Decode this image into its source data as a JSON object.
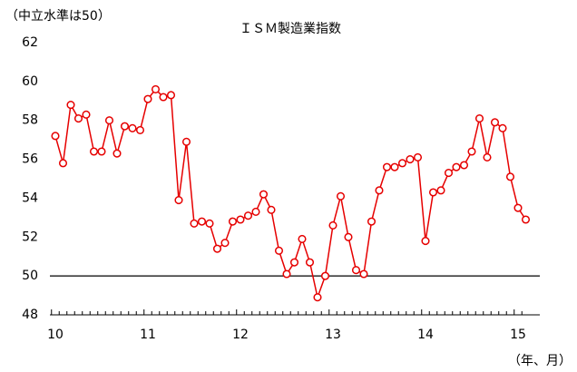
{
  "chart_data": {
    "type": "line",
    "title": "ＩＳＭ製造業指数",
    "y_note": "（中立水準は50）",
    "x_note": "（年、月）",
    "categories": [
      "10",
      null,
      null,
      null,
      null,
      null,
      null,
      null,
      null,
      null,
      null,
      null,
      "11",
      null,
      null,
      null,
      null,
      null,
      null,
      null,
      null,
      null,
      null,
      null,
      "12",
      null,
      null,
      null,
      null,
      null,
      null,
      null,
      null,
      null,
      null,
      null,
      "13",
      null,
      null,
      null,
      null,
      null,
      null,
      null,
      null,
      null,
      null,
      null,
      "14",
      null,
      null,
      null,
      null,
      null,
      null,
      null,
      null,
      null,
      null,
      null,
      "15",
      null
    ],
    "series": [
      {
        "name": "ISM",
        "color": "#e60000",
        "values": [
          57.2,
          55.8,
          58.8,
          58.1,
          58.3,
          56.4,
          56.4,
          58.0,
          56.3,
          57.7,
          57.6,
          57.5,
          59.1,
          59.6,
          59.2,
          59.3,
          53.9,
          56.9,
          52.7,
          52.8,
          52.7,
          51.4,
          51.7,
          52.8,
          52.9,
          53.1,
          53.3,
          54.2,
          53.4,
          51.3,
          50.1,
          50.7,
          51.9,
          50.7,
          48.9,
          50.0,
          52.6,
          54.1,
          52.0,
          50.3,
          50.1,
          52.8,
          54.4,
          55.6,
          55.6,
          55.8,
          56.0,
          56.1,
          51.8,
          54.3,
          54.4,
          55.3,
          55.6,
          55.7,
          56.4,
          58.1,
          56.1,
          57.9,
          57.6,
          55.1,
          53.5,
          52.9
        ]
      }
    ],
    "ylim": [
      48,
      62
    ],
    "yticks": [
      48,
      50,
      52,
      54,
      56,
      58,
      60,
      62
    ],
    "reference_line": 50
  }
}
